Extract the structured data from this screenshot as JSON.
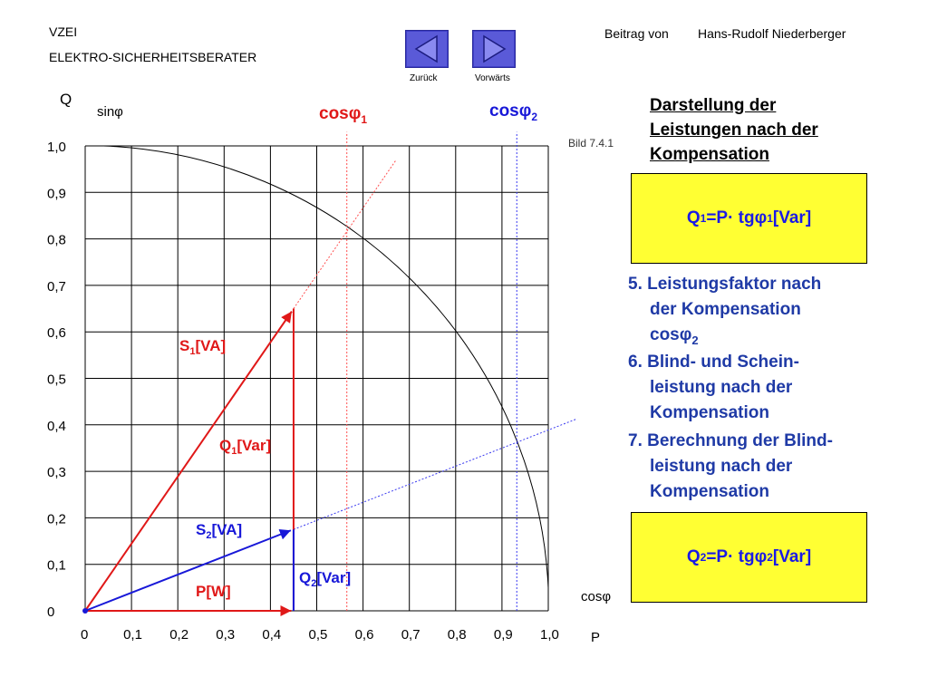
{
  "header": {
    "org": "VZEI",
    "subtitle": "ELEKTRO-SICHERHEITSBERATER",
    "contrib_label": "Beitrag von",
    "author": "Hans-Rudolf Niederberger"
  },
  "nav": {
    "back_label": "Zurück",
    "forward_label": "Vorwärts"
  },
  "diagram": {
    "bild_label": "Bild 7.4.1",
    "y_axis_label": "Q",
    "y_axis_func": "sinφ",
    "x_axis_label": "P",
    "x_axis_func": "cosφ",
    "y_ticks": [
      "1,0",
      "0,9",
      "0,8",
      "0,7",
      "0,6",
      "0,5",
      "0,4",
      "0,3",
      "0,2",
      "0,1",
      "0"
    ],
    "x_ticks": [
      "0",
      "0,1",
      "0,2",
      "0,3",
      "0,4",
      "0,5",
      "0,6",
      "0,7",
      "0,8",
      "0,9",
      "1,0"
    ],
    "cos1_label": "cos",
    "cos1_sub": "1",
    "cos2_label": "cos",
    "cos2_sub": "2",
    "vectors": {
      "P": {
        "label": "P",
        "unit": "[W]",
        "x": 0.45,
        "y": 0.0
      },
      "S1": {
        "label": "S",
        "sub": "1",
        "unit": "[VA]",
        "x": 0.45,
        "y": 0.65
      },
      "Q1": {
        "label": "Q",
        "sub": "1",
        "unit": "[Var]"
      },
      "S2": {
        "label": "S",
        "sub": "2",
        "unit": "[VA]",
        "x": 0.45,
        "y": 0.175
      },
      "Q2": {
        "label": "Q",
        "sub": "2",
        "unit": "[Var]"
      }
    },
    "cos_phi1": 0.565,
    "cos_phi2": 0.932,
    "colors": {
      "phase1": "#e01818",
      "phase2": "#1818d8",
      "grid": "#000000"
    }
  },
  "right": {
    "title_lines": [
      "Darstellung der",
      "Leistungen nach der",
      "Kompensation"
    ],
    "formula1": {
      "q": "Q",
      "q_sub": "1",
      "mid": "=P· tg",
      "phi": "φ",
      "phi_sub": "1",
      "unit": " [Var]"
    },
    "formula2": {
      "q": "Q",
      "q_sub": "2",
      "mid": "=P· tg",
      "phi": "φ",
      "phi_sub": "2",
      "unit": " [Var]"
    },
    "step5": {
      "l1": "5. Leistungsfaktor nach",
      "l2": "der Kompensation",
      "l3": "cosφ",
      "l3_sub": "2"
    },
    "step6": {
      "l1": "6. Blind- und Schein-",
      "l2": "leistung nach der",
      "l3": "Kompensation"
    },
    "step7": {
      "l1": "7. Berechnung der Blind-",
      "l2": "leistung nach der",
      "l3": "Kompensation"
    }
  }
}
